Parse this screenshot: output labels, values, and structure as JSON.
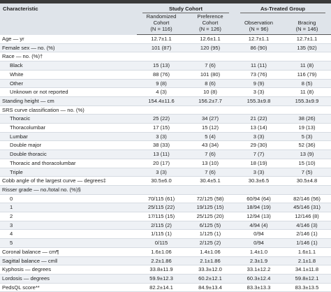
{
  "table": {
    "characteristic": "Characteristic",
    "groups": [
      "Study Cohort",
      "As-Treated Group"
    ],
    "columns": [
      [
        "Randomized",
        "Cohort",
        "(N = 116)"
      ],
      [
        "Preference",
        "Cohort",
        "(N = 126)"
      ],
      [
        "Observation",
        "(N = 96)"
      ],
      [
        "Bracing",
        "(N = 146)"
      ]
    ],
    "rows": [
      {
        "label": "Age — yr",
        "values": [
          "12.7±1.1",
          "12.6±1.1",
          "12.7±1.1",
          "12.7±1.1"
        ]
      },
      {
        "label": "Female sex — no. (%)",
        "values": [
          "101 (87)",
          "120 (95)",
          "86 (90)",
          "135 (92)"
        ]
      },
      {
        "label": "Race — no. (%)†",
        "sub": [
          {
            "label": "Black",
            "values": [
              "15 (13)",
              "7 (6)",
              "11 (11)",
              "11 (8)"
            ]
          },
          {
            "label": "White",
            "values": [
              "88 (76)",
              "101 (80)",
              "73 (76)",
              "116 (79)"
            ]
          },
          {
            "label": "Other",
            "values": [
              "9 (8)",
              "8 (6)",
              "9 (9)",
              "8 (5)"
            ]
          },
          {
            "label": "Unknown or not reported",
            "values": [
              "4 (3)",
              "10 (8)",
              "3 (3)",
              "11 (8)"
            ]
          }
        ]
      },
      {
        "label": "Standing height — cm",
        "values": [
          "154.4±11.6",
          "156.2±7.7",
          "155.3±9.8",
          "155.3±9.9"
        ]
      },
      {
        "label": "SRS curve classification — no. (%)",
        "sub": [
          {
            "label": "Thoracic",
            "values": [
              "25 (22)",
              "34 (27)",
              "21 (22)",
              "38 (26)"
            ]
          },
          {
            "label": "Thoracolumbar",
            "values": [
              "17 (15)",
              "15 (12)",
              "13 (14)",
              "19 (13)"
            ]
          },
          {
            "label": "Lumbar",
            "values": [
              "3 (3)",
              "5 (4)",
              "3 (3)",
              "5 (3)"
            ]
          },
          {
            "label": "Double major",
            "values": [
              "38 (33)",
              "43 (34)",
              "29 (30)",
              "52 (36)"
            ]
          },
          {
            "label": "Double thoracic",
            "values": [
              "13 (11)",
              "7 (6)",
              "7 (7)",
              "13 (9)"
            ]
          },
          {
            "label": "Thoracic and thoracolumbar",
            "values": [
              "20 (17)",
              "13 (10)",
              "18 (19)",
              "15 (10)"
            ]
          },
          {
            "label": "Triple",
            "values": [
              "3 (3)",
              "7 (6)",
              "3 (3)",
              "7 (5)"
            ]
          }
        ]
      },
      {
        "label": "Cobb angle of the largest curve — degrees‡",
        "values": [
          "30.5±6.0",
          "30.4±5.1",
          "30.3±6.5",
          "30.5±4.8"
        ]
      },
      {
        "label": "Risser grade — no./total no. (%)§",
        "sub": [
          {
            "label": "0",
            "values": [
              "70/115 (61)",
              "72/125 (58)",
              "60/94 (64)",
              "82/146 (56)"
            ]
          },
          {
            "label": "1",
            "values": [
              "25/115 (22)",
              "19/125 (15)",
              "18/94 (19)",
              "45/146 (31)"
            ]
          },
          {
            "label": "2",
            "values": [
              "17/115 (15)",
              "25/125 (20)",
              "12/94 (13)",
              "12/146 (8)"
            ]
          },
          {
            "label": "3",
            "values": [
              "2/115 (2)",
              "6/125 (5)",
              "4/94 (4)",
              "4/146 (3)"
            ]
          },
          {
            "label": "4",
            "values": [
              "1/115 (1)",
              "1/125 (1)",
              "0/94",
              "2/146 (1)"
            ]
          },
          {
            "label": "5",
            "values": [
              "0/115",
              "2/125 (2)",
              "0/94",
              "1/146 (1)"
            ]
          }
        ]
      },
      {
        "label": "Coronal balance — cm¶",
        "values": [
          "1.6±1.06",
          "1.4±1.06",
          "1.4±1.0",
          "1.6±1.1"
        ]
      },
      {
        "label": "Sagittal balance — cm‖",
        "values": [
          "2.2±1.86",
          "2.1±1.86",
          "2.3±1.9",
          "2.1±1.8"
        ]
      },
      {
        "label": "Kyphosis — degrees",
        "values": [
          "33.8±11.9",
          "33.3±12.0",
          "33.1±12.2",
          "34.1±11.8"
        ]
      },
      {
        "label": "Lordosis — degrees",
        "values": [
          "59.9±12.3",
          "60.2±12.1",
          "60.3±12.4",
          "59.8±12.1"
        ]
      },
      {
        "label": "PedsQL score**",
        "values": [
          "82.2±14.1",
          "84.9±13.4",
          "83.3±13.3",
          "83.3±13.5"
        ]
      }
    ]
  }
}
